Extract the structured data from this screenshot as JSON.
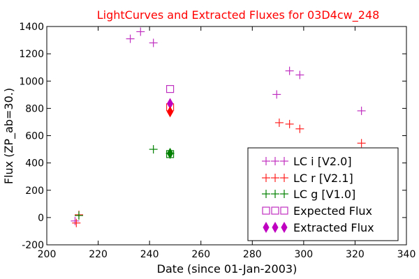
{
  "chart_data": {
    "type": "scatter",
    "title": "LightCurves and Extracted Fluxes for 03D4cw_248",
    "xlabel": "Date (since 01-Jan-2003)",
    "ylabel": "Flux (ZP_ab=30.)",
    "xlim": [
      200,
      340
    ],
    "ylim": [
      -200,
      1400
    ],
    "xticks": [
      "200",
      "220",
      "240",
      "260",
      "280",
      "300",
      "320",
      "340"
    ],
    "yticks": [
      "-200",
      "0",
      "200",
      "400",
      "600",
      "800",
      "1000",
      "1200",
      "1400"
    ],
    "grid": false,
    "legend_position": "lower-right",
    "series": [
      {
        "name": "LC i [V2.0]",
        "marker": "plus",
        "color": "#c030c0",
        "points": [
          [
            211,
            -25
          ],
          [
            232.5,
            1310
          ],
          [
            236.5,
            1362
          ],
          [
            241.5,
            1280
          ],
          [
            289.5,
            902
          ],
          [
            294.5,
            1075
          ],
          [
            298.5,
            1045
          ],
          [
            322.5,
            782
          ]
        ]
      },
      {
        "name": "LC r [V2.1]",
        "marker": "plus",
        "color": "#ff2020",
        "points": [
          [
            211.5,
            -40
          ],
          [
            212.5,
            20
          ],
          [
            290.5,
            695
          ],
          [
            294.5,
            685
          ],
          [
            298.5,
            650
          ],
          [
            322.5,
            545
          ]
        ]
      },
      {
        "name": "LC g [V1.0]",
        "marker": "plus",
        "color": "#008000",
        "points": [
          [
            212.5,
            15
          ],
          [
            241.5,
            500
          ],
          [
            248,
            470
          ]
        ]
      },
      {
        "name": "Expected Flux",
        "marker": "square",
        "color": "#c030c0",
        "points": [
          [
            248,
            942
          ],
          [
            248,
            808
          ],
          [
            248,
            465
          ]
        ]
      },
      {
        "name": "Extracted Flux",
        "marker": "diamond",
        "color": "#c000c0",
        "points": [
          [
            248,
            835
          ],
          [
            248,
            775
          ],
          [
            248,
            470
          ]
        ]
      }
    ],
    "extra_marker_colors": {
      "expected_r": "#ff2020",
      "expected_g": "#008000",
      "extracted_r": "#ff0000",
      "extracted_g": "#008000"
    }
  }
}
